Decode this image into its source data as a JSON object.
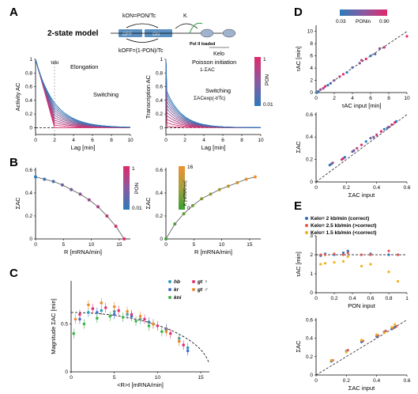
{
  "colors": {
    "pon_low": "#2b7bba",
    "pon_high": "#e02a6b",
    "k_low": "#3ba035",
    "k_high": "#f09030",
    "kelo_2": "#2f6fb5",
    "kelo_25": "#e05a55",
    "kelo_15": "#f0b21a",
    "hb": "#2e9fbf",
    "kr": "#3f6fd0",
    "kni": "#3fb54a",
    "gt_female": "#e0356e",
    "gt_male": "#f08a2a"
  },
  "panelA": {
    "label": "A",
    "model_title": "2-state model",
    "kon_label": "kON=PON/Tc",
    "koff_label": "kOFF=(1-PON)/Tc",
    "k_label": "K",
    "off_label": "OFF",
    "on_label": "ON",
    "pol_label": "Pol II loaded",
    "kelo_label": "Kelo",
    "left_ann_tau": "τelo",
    "left_ann_elong": "Elongation",
    "left_ann_switch": "Switching",
    "right_ann_poisson1": "Poisson initiation",
    "right_ann_poisson2": "1-ΣAC",
    "right_ann_switch1": "Switching",
    "right_ann_switch2": "ΣACexp(-t/Tc)",
    "cbar_title": "PON",
    "cbar_max": "1",
    "cbar_min": "0.01"
  },
  "panelB": {
    "label": "B",
    "cbar1_title": "PON",
    "cbar1_max": "1",
    "cbar1_min": "0.01",
    "cbar2_title": "K [mRNA/min]",
    "cbar2_max": "16",
    "cbar2_min": "0"
  },
  "panelC": {
    "label": "C",
    "legend": [
      "hb",
      "kr",
      "kni",
      "gt ♀",
      "gt ♂"
    ]
  },
  "panelD": {
    "label": "D",
    "cbar_title": "PONin",
    "cbar_min": "0.03",
    "cbar_max": "0.90"
  },
  "panelE": {
    "label": "E",
    "legend": [
      "Kelo= 2 kb/min (correct)",
      "Kelo= 2.5 kb/min (>correct)",
      "Kelo= 1.5 kb/min (<correct)"
    ]
  },
  "chart_data": [
    {
      "id": "A-left",
      "type": "line",
      "xlabel": "Lag [min]",
      "ylabel": "Activity AC",
      "xlim": [
        0,
        10
      ],
      "ylim": [
        -0.1,
        1.0
      ],
      "xticks": [
        0,
        2,
        4,
        6,
        8,
        10
      ],
      "yticks": [
        0,
        0.2,
        0.4,
        0.6,
        0.8,
        1
      ],
      "series_note_values": {
        "pon_values": [
          1,
          0.9,
          0.8,
          0.7,
          0.6,
          0.5,
          0.4,
          0.3,
          0.2,
          0.1,
          0.01
        ],
        "tau_elo": 2,
        "Tc": 2
      }
    },
    {
      "id": "A-right",
      "type": "line",
      "xlabel": "Lag [min]",
      "ylabel": "Transcription AC",
      "xlim": [
        0,
        10
      ],
      "ylim": [
        -0.1,
        1.0
      ],
      "xticks": [
        0,
        2,
        4,
        6,
        8,
        10
      ],
      "yticks": [
        0,
        0.2,
        0.4,
        0.6,
        0.8,
        1
      ],
      "series_note_values": {
        "pon_values": [
          1,
          0.9,
          0.8,
          0.7,
          0.6,
          0.5,
          0.4,
          0.3,
          0.2,
          0.1,
          0.01
        ],
        "Tc": 2
      }
    },
    {
      "id": "B-left",
      "type": "scatter",
      "xlabel": "R [mRNA/min]",
      "ylabel": "ΣAC",
      "xlim": [
        0,
        17
      ],
      "ylim": [
        0,
        0.62
      ],
      "xticks": [
        0,
        5,
        10,
        15
      ],
      "yticks": [
        0,
        0.2,
        0.4,
        0.6
      ],
      "x": [
        0,
        1.6,
        3.2,
        4.8,
        6.4,
        8.0,
        9.6,
        11.2,
        12.8,
        14.4,
        15.9
      ],
      "y": [
        0.54,
        0.52,
        0.5,
        0.47,
        0.43,
        0.39,
        0.34,
        0.28,
        0.2,
        0.11,
        0.0
      ]
    },
    {
      "id": "B-right",
      "type": "scatter",
      "xlabel": "R [mRNA/min]",
      "ylabel": "ΣAC",
      "xlim": [
        0,
        17
      ],
      "ylim": [
        0,
        0.62
      ],
      "xticks": [
        0,
        5,
        10,
        15
      ],
      "yticks": [
        0,
        0.2,
        0.4,
        0.6
      ],
      "x": [
        0,
        1.6,
        3.2,
        4.8,
        6.4,
        8.0,
        9.6,
        11.2,
        12.8,
        14.4,
        16.0
      ],
      "y": [
        0.0,
        0.13,
        0.22,
        0.29,
        0.35,
        0.39,
        0.43,
        0.46,
        0.49,
        0.52,
        0.54
      ]
    },
    {
      "id": "C",
      "type": "scatter",
      "xlabel": "<R>t [mRNA/min]",
      "ylabel": "Magnitude ΣAC [min]",
      "xlim": [
        0,
        16
      ],
      "ylim": [
        0,
        0.95
      ],
      "xticks": [
        0,
        5,
        10,
        15
      ],
      "yticks": [
        0,
        0.5
      ],
      "series": [
        {
          "name": "hb",
          "x": [
            2,
            3.5,
            5,
            6.5,
            8,
            9.5,
            11,
            12.5,
            13.5
          ],
          "y": [
            0.62,
            0.64,
            0.63,
            0.6,
            0.55,
            0.5,
            0.44,
            0.35,
            0.25
          ]
        },
        {
          "name": "kr",
          "x": [
            1,
            3,
            5,
            7,
            9,
            11,
            12.5,
            13.5
          ],
          "y": [
            0.55,
            0.62,
            0.6,
            0.58,
            0.52,
            0.45,
            0.32,
            0.22
          ]
        },
        {
          "name": "kni",
          "x": [
            0.3,
            1.5,
            3,
            4.5,
            6,
            7.5,
            9,
            10.5
          ],
          "y": [
            0.4,
            0.5,
            0.56,
            0.58,
            0.57,
            0.53,
            0.48,
            0.42
          ]
        },
        {
          "name": "gt ♀",
          "x": [
            1,
            2.5,
            4,
            5.5,
            7,
            8.5,
            10,
            11.5,
            13
          ],
          "y": [
            0.6,
            0.66,
            0.67,
            0.64,
            0.6,
            0.55,
            0.48,
            0.4,
            0.28
          ]
        },
        {
          "name": "gt ♂",
          "x": [
            0.5,
            2,
            3.5,
            5,
            6.5,
            8,
            9.5,
            11,
            12.5
          ],
          "y": [
            0.55,
            0.7,
            0.72,
            0.68,
            0.63,
            0.58,
            0.5,
            0.42,
            0.32
          ]
        }
      ]
    },
    {
      "id": "D-top",
      "type": "scatter",
      "xlabel": "τAC input [min]",
      "ylabel": "τAC [min]",
      "xlim": [
        0,
        10
      ],
      "ylim": [
        0,
        11
      ],
      "xticks": [
        0,
        2,
        4,
        6,
        8,
        10
      ],
      "yticks": [
        0,
        2,
        4,
        6,
        8,
        10
      ],
      "x": [
        0.1,
        0.25,
        0.5,
        0.8,
        1.0,
        1.3,
        1.6,
        2.0,
        2.6,
        3.0,
        3.4,
        4.0,
        4.8,
        5.0,
        5.5,
        6.0,
        6.5,
        7.0,
        7.5,
        10.0
      ],
      "y": [
        0.0,
        0.2,
        0.5,
        0.7,
        1.0,
        1.2,
        1.5,
        2.0,
        2.6,
        3.0,
        3.3,
        4.1,
        4.8,
        5.3,
        5.5,
        6.0,
        6.3,
        7.2,
        7.4,
        9.2
      ]
    },
    {
      "id": "D-bottom",
      "type": "scatter",
      "xlabel": "ΣAC input",
      "ylabel": "ΣAC",
      "xlim": [
        0,
        0.6
      ],
      "ylim": [
        0,
        0.62
      ],
      "xticks": [
        0,
        0.2,
        0.4,
        0.6
      ],
      "yticks": [
        0,
        0.2,
        0.4,
        0.6
      ],
      "x": [
        0.09,
        0.1,
        0.11,
        0.17,
        0.18,
        0.19,
        0.24,
        0.25,
        0.27,
        0.3,
        0.33,
        0.36,
        0.38,
        0.4,
        0.43,
        0.45,
        0.47,
        0.48,
        0.5,
        0.52,
        0.53
      ],
      "y": [
        0.15,
        0.16,
        0.17,
        0.2,
        0.21,
        0.22,
        0.27,
        0.28,
        0.3,
        0.33,
        0.36,
        0.39,
        0.4,
        0.42,
        0.45,
        0.47,
        0.48,
        0.49,
        0.51,
        0.53,
        0.54
      ]
    },
    {
      "id": "E-top",
      "type": "scatter",
      "xlabel": "PON input",
      "ylabel": "τAC [min]",
      "xlim": [
        0,
        1
      ],
      "ylim": [
        0,
        3
      ],
      "xticks": [
        0,
        0.2,
        0.4,
        0.6,
        0.8,
        1
      ],
      "yticks": [
        0,
        1,
        2,
        3
      ],
      "series": [
        {
          "name": "Kelo= 2 kb/min (correct)",
          "x": [
            0.05,
            0.1,
            0.2,
            0.3,
            0.35,
            0.5,
            0.6,
            0.8,
            0.9
          ],
          "y": [
            1.95,
            2.05,
            2.0,
            2.1,
            2.2,
            2.0,
            2.05,
            2.0,
            2.0
          ]
        },
        {
          "name": "Kelo= 2.5 kb/min (>correct)",
          "x": [
            0.05,
            0.1,
            0.2,
            0.3,
            0.35,
            0.5,
            0.6,
            0.8,
            0.9
          ],
          "y": [
            2.0,
            2.0,
            2.05,
            2.0,
            2.1,
            2.0,
            2.0,
            2.2,
            2.0
          ]
        },
        {
          "name": "Kelo= 1.5 kb/min (<correct)",
          "x": [
            0.05,
            0.1,
            0.2,
            0.3,
            0.35,
            0.5,
            0.6,
            0.8,
            0.9
          ],
          "y": [
            1.5,
            1.55,
            1.6,
            1.65,
            1.9,
            1.4,
            1.5,
            1.1,
            0.6
          ]
        }
      ]
    },
    {
      "id": "E-bottom",
      "type": "scatter",
      "xlabel": "ΣAC input",
      "ylabel": "ΣAC",
      "xlim": [
        0,
        0.6
      ],
      "ylim": [
        0,
        0.62
      ],
      "xticks": [
        0,
        0.2,
        0.4,
        0.6
      ],
      "yticks": [
        0,
        0.2,
        0.4,
        0.6
      ],
      "series": [
        {
          "name": "Kelo= 2 kb/min (correct)",
          "x": [
            0.1,
            0.2,
            0.3,
            0.4,
            0.45,
            0.5,
            0.52
          ],
          "y": [
            0.15,
            0.26,
            0.36,
            0.42,
            0.47,
            0.5,
            0.52
          ]
        },
        {
          "name": "Kelo= 2.5 kb/min (>correct)",
          "x": [
            0.11,
            0.21,
            0.31,
            0.41,
            0.46,
            0.51,
            0.53
          ],
          "y": [
            0.16,
            0.27,
            0.37,
            0.43,
            0.48,
            0.51,
            0.53
          ]
        },
        {
          "name": "Kelo= 1.5 kb/min (<correct)",
          "x": [
            0.1,
            0.2,
            0.3,
            0.4,
            0.45,
            0.5,
            0.52
          ],
          "y": [
            0.16,
            0.25,
            0.38,
            0.44,
            0.46,
            0.52,
            0.55
          ]
        }
      ]
    }
  ]
}
